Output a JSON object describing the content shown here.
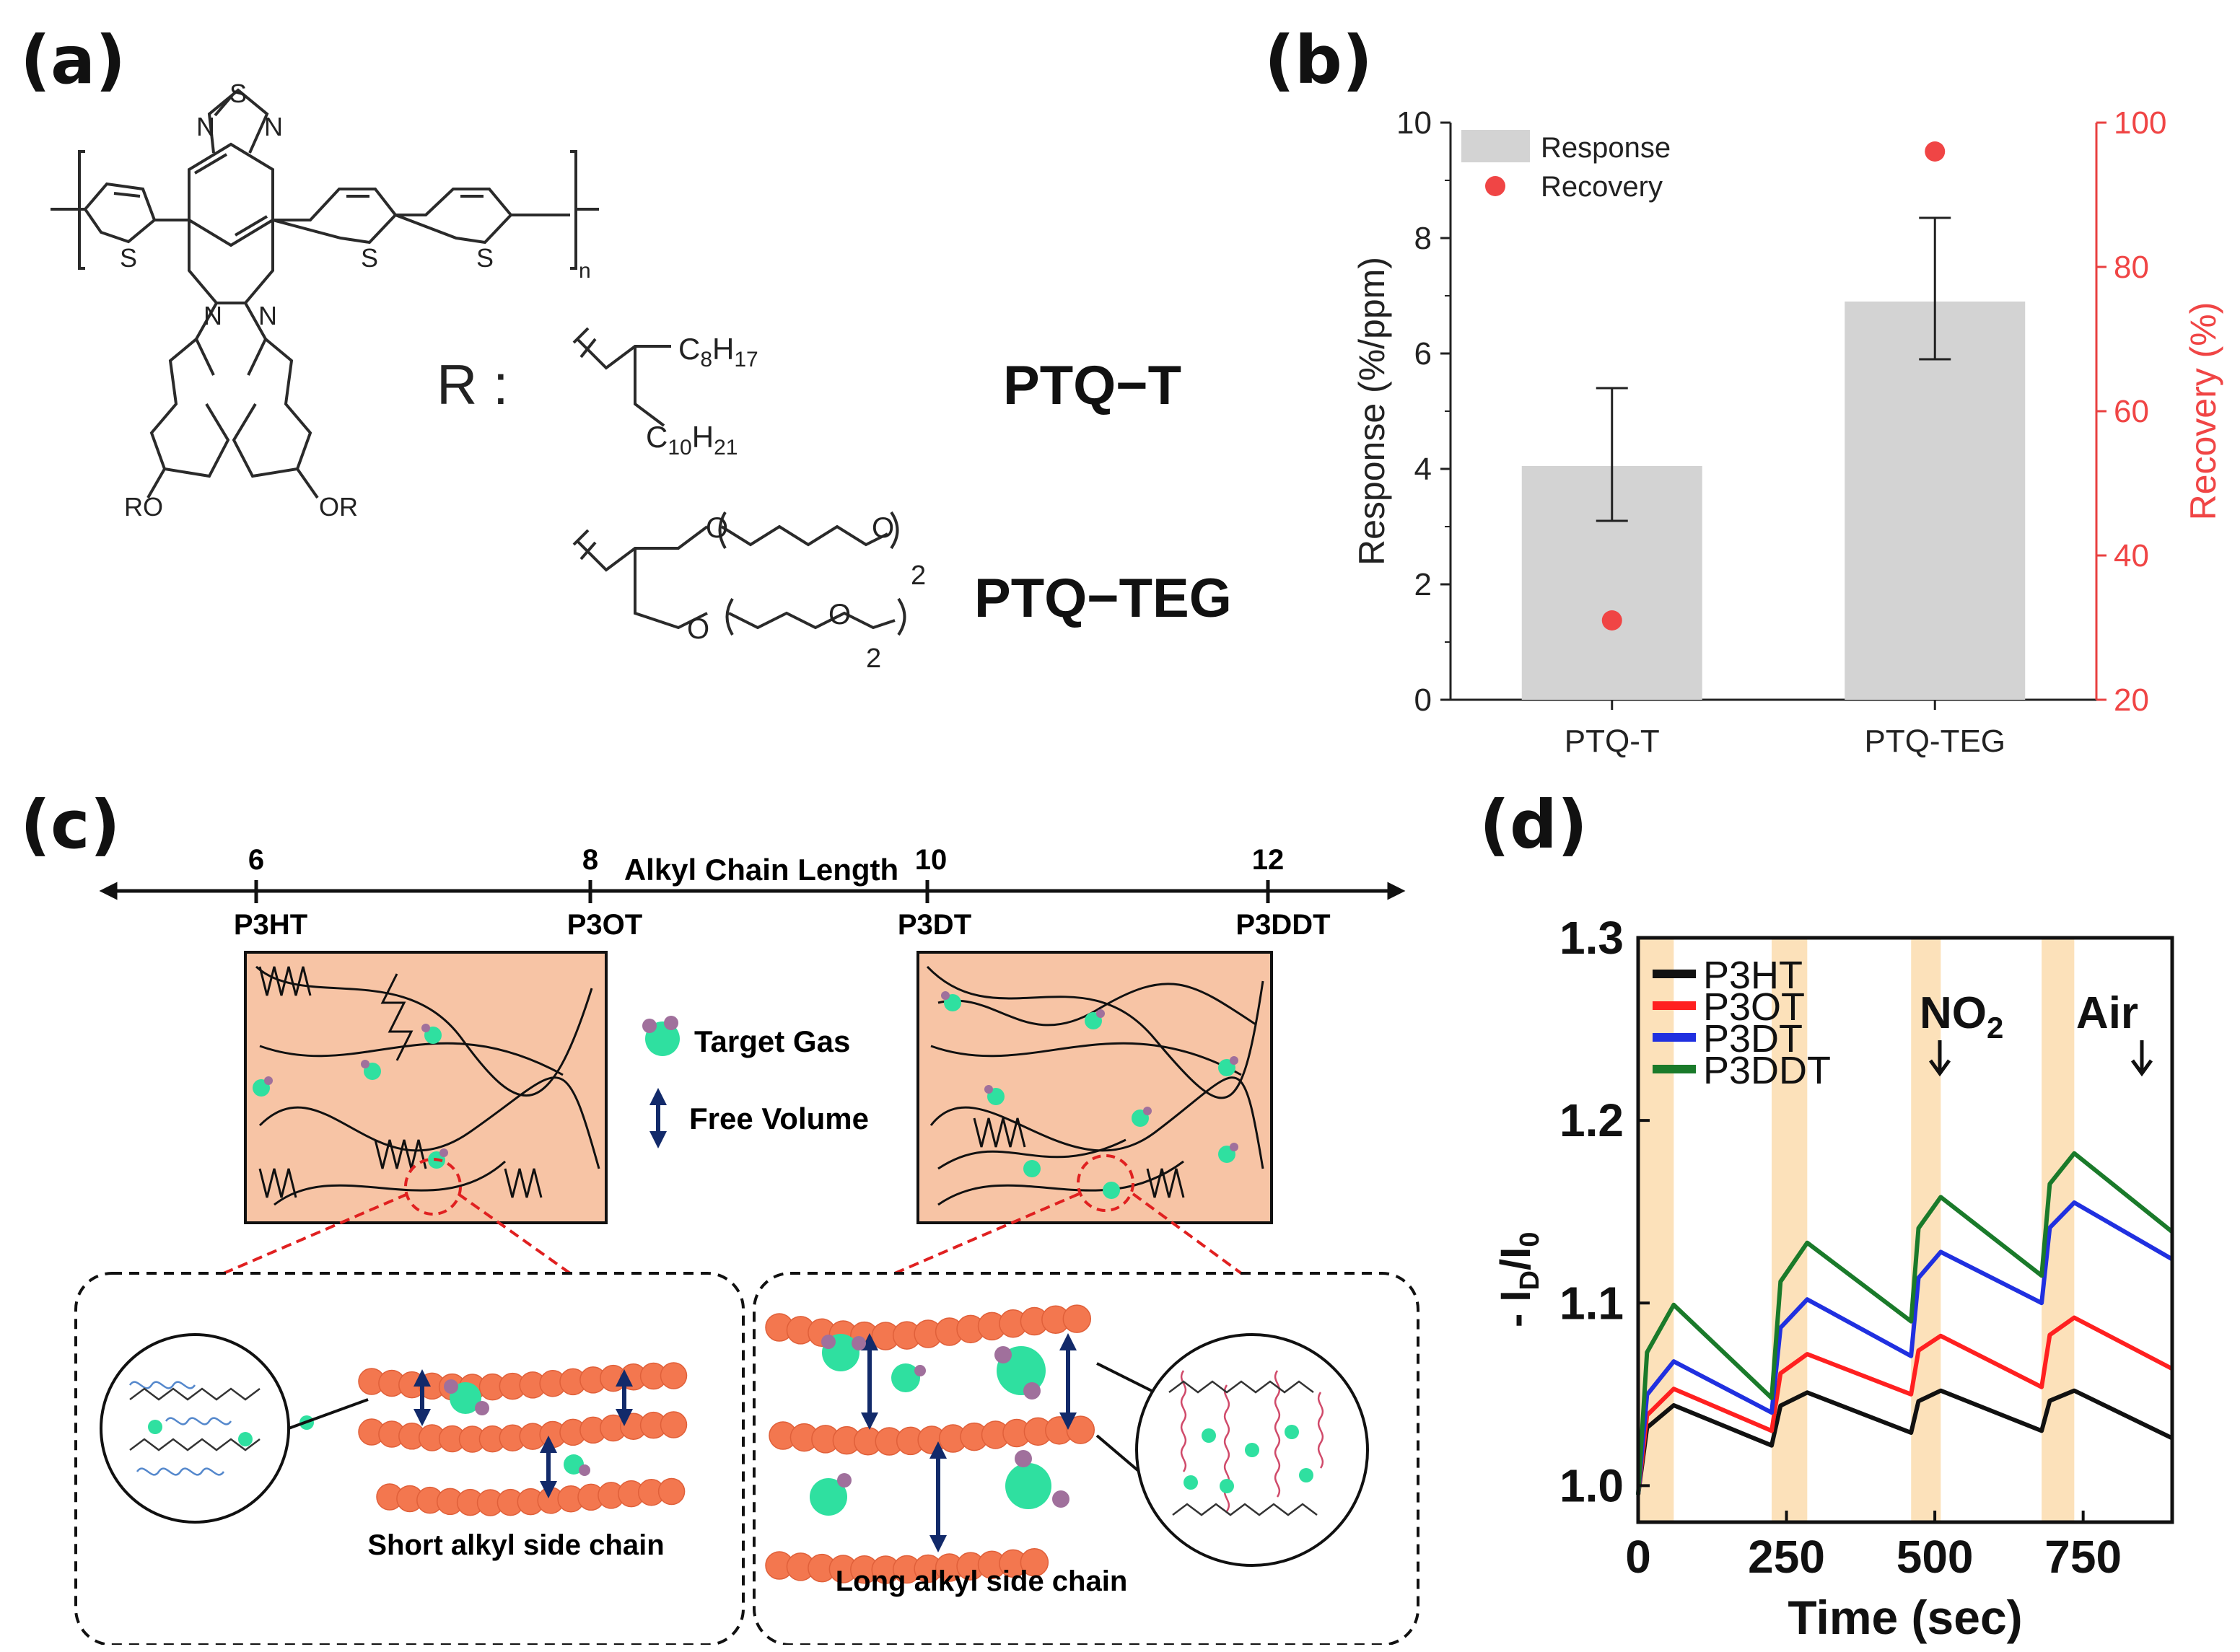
{
  "panels": {
    "a": "(a)",
    "b": "(b)",
    "c": "(c)",
    "d": "(d)"
  },
  "panel_a": {
    "atoms": {
      "S": "S",
      "N": "N",
      "n": "n",
      "RO": "RO",
      "OR": "OR",
      "O": "O",
      "two": "2"
    },
    "r_label": "R :",
    "c8_sub": "8",
    "c8_h": "H",
    "c8_sub2": "17",
    "c10_sub": "10",
    "c10_h": "H",
    "c10_sub2": "21",
    "c_letter": "C",
    "ptq_t": "PTQ−T",
    "ptq_teg": "PTQ−TEG"
  },
  "chart_data": [
    {
      "panel": "b",
      "type": "bar",
      "categories": [
        "PTQ-T",
        "PTQ-TEG"
      ],
      "series": [
        {
          "name": "Response",
          "values": [
            4.05,
            6.9
          ],
          "err_low": [
            3.1,
            5.9
          ],
          "err_high": [
            5.4,
            8.35
          ],
          "color": "#d3d3d3"
        },
        {
          "name": "Recovery",
          "values": [
            31,
            96
          ],
          "axis": "right",
          "color": "#f04545"
        }
      ],
      "ylabel": "Response (%/ppm)",
      "ylabel_right": "Recovery (%)",
      "ylim": [
        0,
        10
      ],
      "ylim_right": [
        20,
        100
      ],
      "yticks": [
        "0",
        "2",
        "4",
        "6",
        "8",
        "10"
      ],
      "yticks_right": [
        "20",
        "40",
        "60",
        "80",
        "100"
      ],
      "legend": [
        "Response",
        "Recovery"
      ],
      "legend_position": "top-left"
    },
    {
      "panel": "d",
      "type": "line",
      "title": "",
      "xlabel": "Time (sec)",
      "ylabel_main": "- I",
      "ylabel_sub1": "D",
      "ylabel_sep": "/I",
      "ylabel_sub2": "0",
      "xlim": [
        0,
        900
      ],
      "ylim": [
        0.98,
        1.3
      ],
      "xticks": [
        "0",
        "250",
        "500",
        "750"
      ],
      "yticks": [
        "1.0",
        "1.1",
        "1.2",
        "1.3"
      ],
      "exposure_windows": [
        [
          0,
          60
        ],
        [
          225,
          285
        ],
        [
          460,
          510
        ],
        [
          680,
          735
        ]
      ],
      "series": [
        {
          "name": "P3HT",
          "color": "#111111",
          "peaks": [
            1.044,
            1.051,
            1.052,
            1.052
          ],
          "troughs": [
            1.022,
            1.029,
            1.03
          ],
          "end": 1.026
        },
        {
          "name": "P3OT",
          "color": "#ff2020",
          "peaks": [
            1.053,
            1.072,
            1.082,
            1.092
          ],
          "troughs": [
            1.03,
            1.05,
            1.054
          ],
          "end": 1.064
        },
        {
          "name": "P3DT",
          "color": "#2030e0",
          "peaks": [
            1.068,
            1.102,
            1.128,
            1.155
          ],
          "troughs": [
            1.04,
            1.071,
            1.1
          ],
          "end": 1.124
        },
        {
          "name": "P3DDT",
          "color": "#1a7a2a",
          "peaks": [
            1.099,
            1.133,
            1.158,
            1.182
          ],
          "troughs": [
            1.048,
            1.09,
            1.115
          ],
          "end": 1.139
        }
      ],
      "annotations": [
        {
          "text": "NO",
          "sub": "2",
          "x": 495
        },
        {
          "text": "Air",
          "x": 745
        }
      ],
      "legend_position": "top-left"
    }
  ],
  "panel_c": {
    "axis_label": "Alkyl Chain Length",
    "ticks": [
      {
        "num": "6",
        "name": "P3HT"
      },
      {
        "num": "8",
        "name": "P3OT"
      },
      {
        "num": "10",
        "name": "P3DT"
      },
      {
        "num": "12",
        "name": "P3DDT"
      }
    ],
    "legend_gas": "Target Gas",
    "legend_volume": "Free Volume",
    "short_label": "Short alkyl side chain",
    "long_label": "Long alkyl side chain",
    "colors": {
      "film": "#f7c4a5",
      "bead": "#f3774f",
      "gas": "#2fe0a0",
      "gas_small": "#a0709c",
      "arrow": "#122a6a",
      "dash_red": "#e02020"
    }
  }
}
